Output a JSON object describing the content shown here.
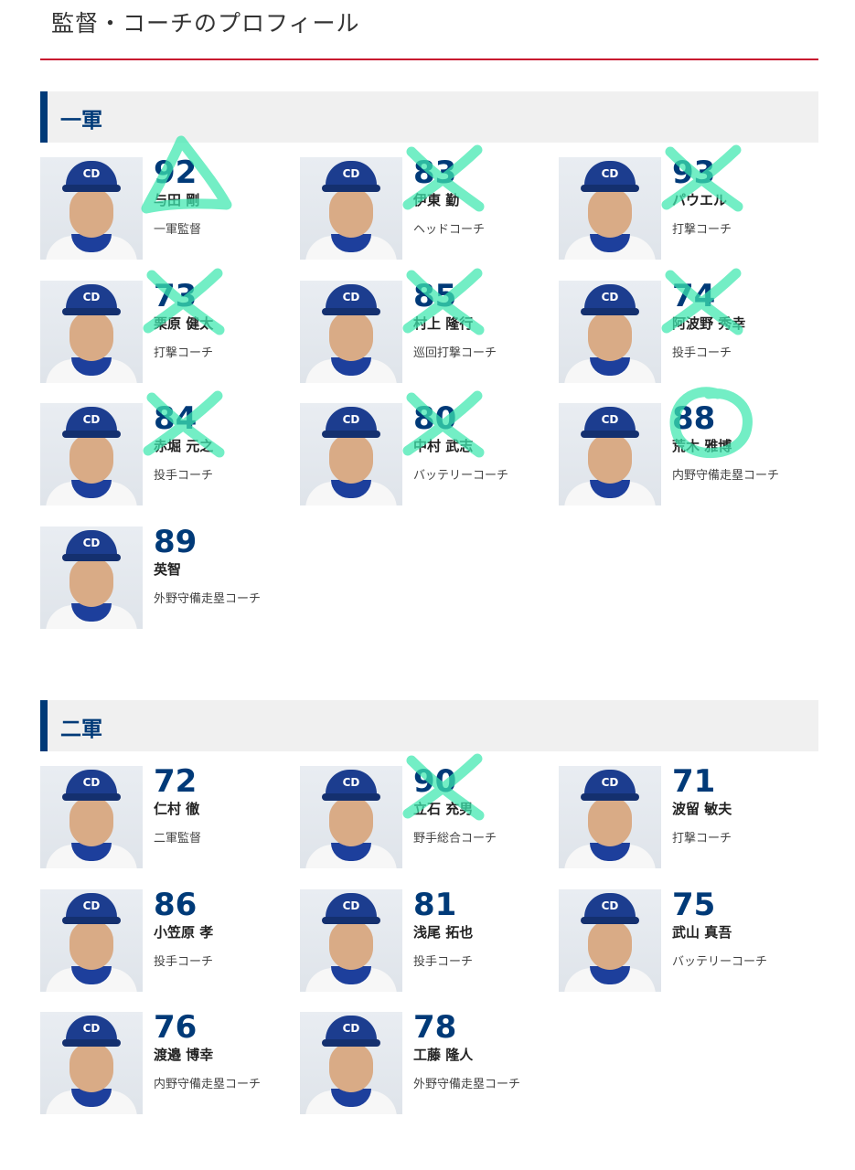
{
  "page": {
    "title": "監督・コーチのプロフィール"
  },
  "colors": {
    "accent": "#c8102e",
    "primary": "#003a78",
    "marker": "#3ee8b0"
  },
  "sections": [
    {
      "label": "一軍",
      "staff": [
        {
          "number": "92",
          "name": "与田 剛",
          "role": "一軍監督",
          "mark": "triangle"
        },
        {
          "number": "83",
          "name": "伊東 勤",
          "role": "ヘッドコーチ",
          "mark": "cross"
        },
        {
          "number": "93",
          "name": "パウエル",
          "role": "打撃コーチ",
          "mark": "cross"
        },
        {
          "number": "73",
          "name": "栗原 健太",
          "role": "打撃コーチ",
          "mark": "cross"
        },
        {
          "number": "85",
          "name": "村上 隆行",
          "role": "巡回打撃コーチ",
          "mark": "cross"
        },
        {
          "number": "74",
          "name": "阿波野 秀幸",
          "role": "投手コーチ",
          "mark": "cross"
        },
        {
          "number": "84",
          "name": "赤堀 元之",
          "role": "投手コーチ",
          "mark": "cross"
        },
        {
          "number": "80",
          "name": "中村 武志",
          "role": "バッテリーコーチ",
          "mark": "cross"
        },
        {
          "number": "88",
          "name": "荒木 雅博",
          "role": "内野守備走塁コーチ",
          "mark": "circle"
        },
        {
          "number": "89",
          "name": "英智",
          "role": "外野守備走塁コーチ",
          "mark": ""
        }
      ]
    },
    {
      "label": "二軍",
      "staff": [
        {
          "number": "72",
          "name": "仁村 徹",
          "role": "二軍監督",
          "mark": ""
        },
        {
          "number": "90",
          "name": "立石 充男",
          "role": "野手総合コーチ",
          "mark": "cross"
        },
        {
          "number": "71",
          "name": "波留 敏夫",
          "role": "打撃コーチ",
          "mark": ""
        },
        {
          "number": "86",
          "name": "小笠原 孝",
          "role": "投手コーチ",
          "mark": ""
        },
        {
          "number": "81",
          "name": "浅尾 拓也",
          "role": "投手コーチ",
          "mark": ""
        },
        {
          "number": "75",
          "name": "武山 真吾",
          "role": "バッテリーコーチ",
          "mark": ""
        },
        {
          "number": "76",
          "name": "渡邉 博幸",
          "role": "内野守備走塁コーチ",
          "mark": ""
        },
        {
          "number": "78",
          "name": "工藤 隆人",
          "role": "外野守備走塁コーチ",
          "mark": ""
        }
      ]
    }
  ],
  "icons": {
    "cap_logo": "team-cap-logo-icon",
    "photo": "player-photo"
  }
}
